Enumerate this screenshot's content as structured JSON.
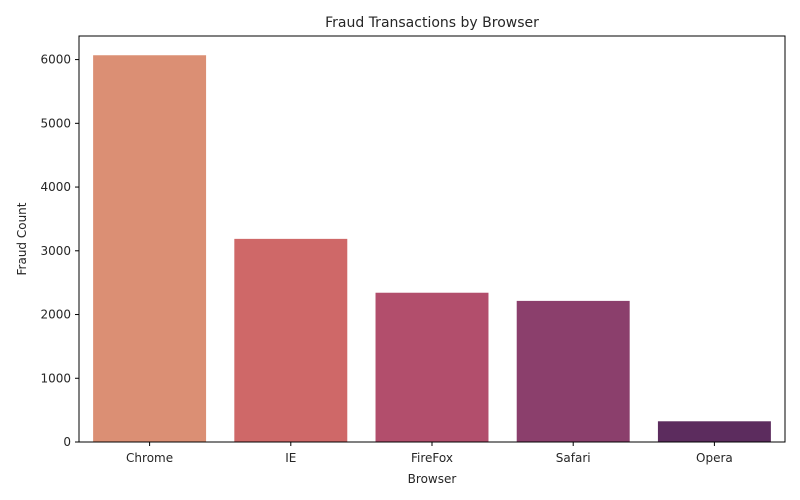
{
  "chart_data": {
    "type": "bar",
    "title": "Fraud Transactions by Browser",
    "xlabel": "Browser",
    "ylabel": "Fraud Count",
    "categories": [
      "Chrome",
      "IE",
      "FireFox",
      "Safari",
      "Opera"
    ],
    "values": [
      6068,
      3187,
      2342,
      2214,
      325
    ],
    "colors": [
      "#db8f74",
      "#cf6868",
      "#b24e6c",
      "#8b3f6c",
      "#5c2c5e"
    ],
    "ylim": [
      0,
      6370
    ],
    "yticks": [
      0,
      1000,
      2000,
      3000,
      4000,
      5000,
      6000
    ],
    "grid": false
  }
}
